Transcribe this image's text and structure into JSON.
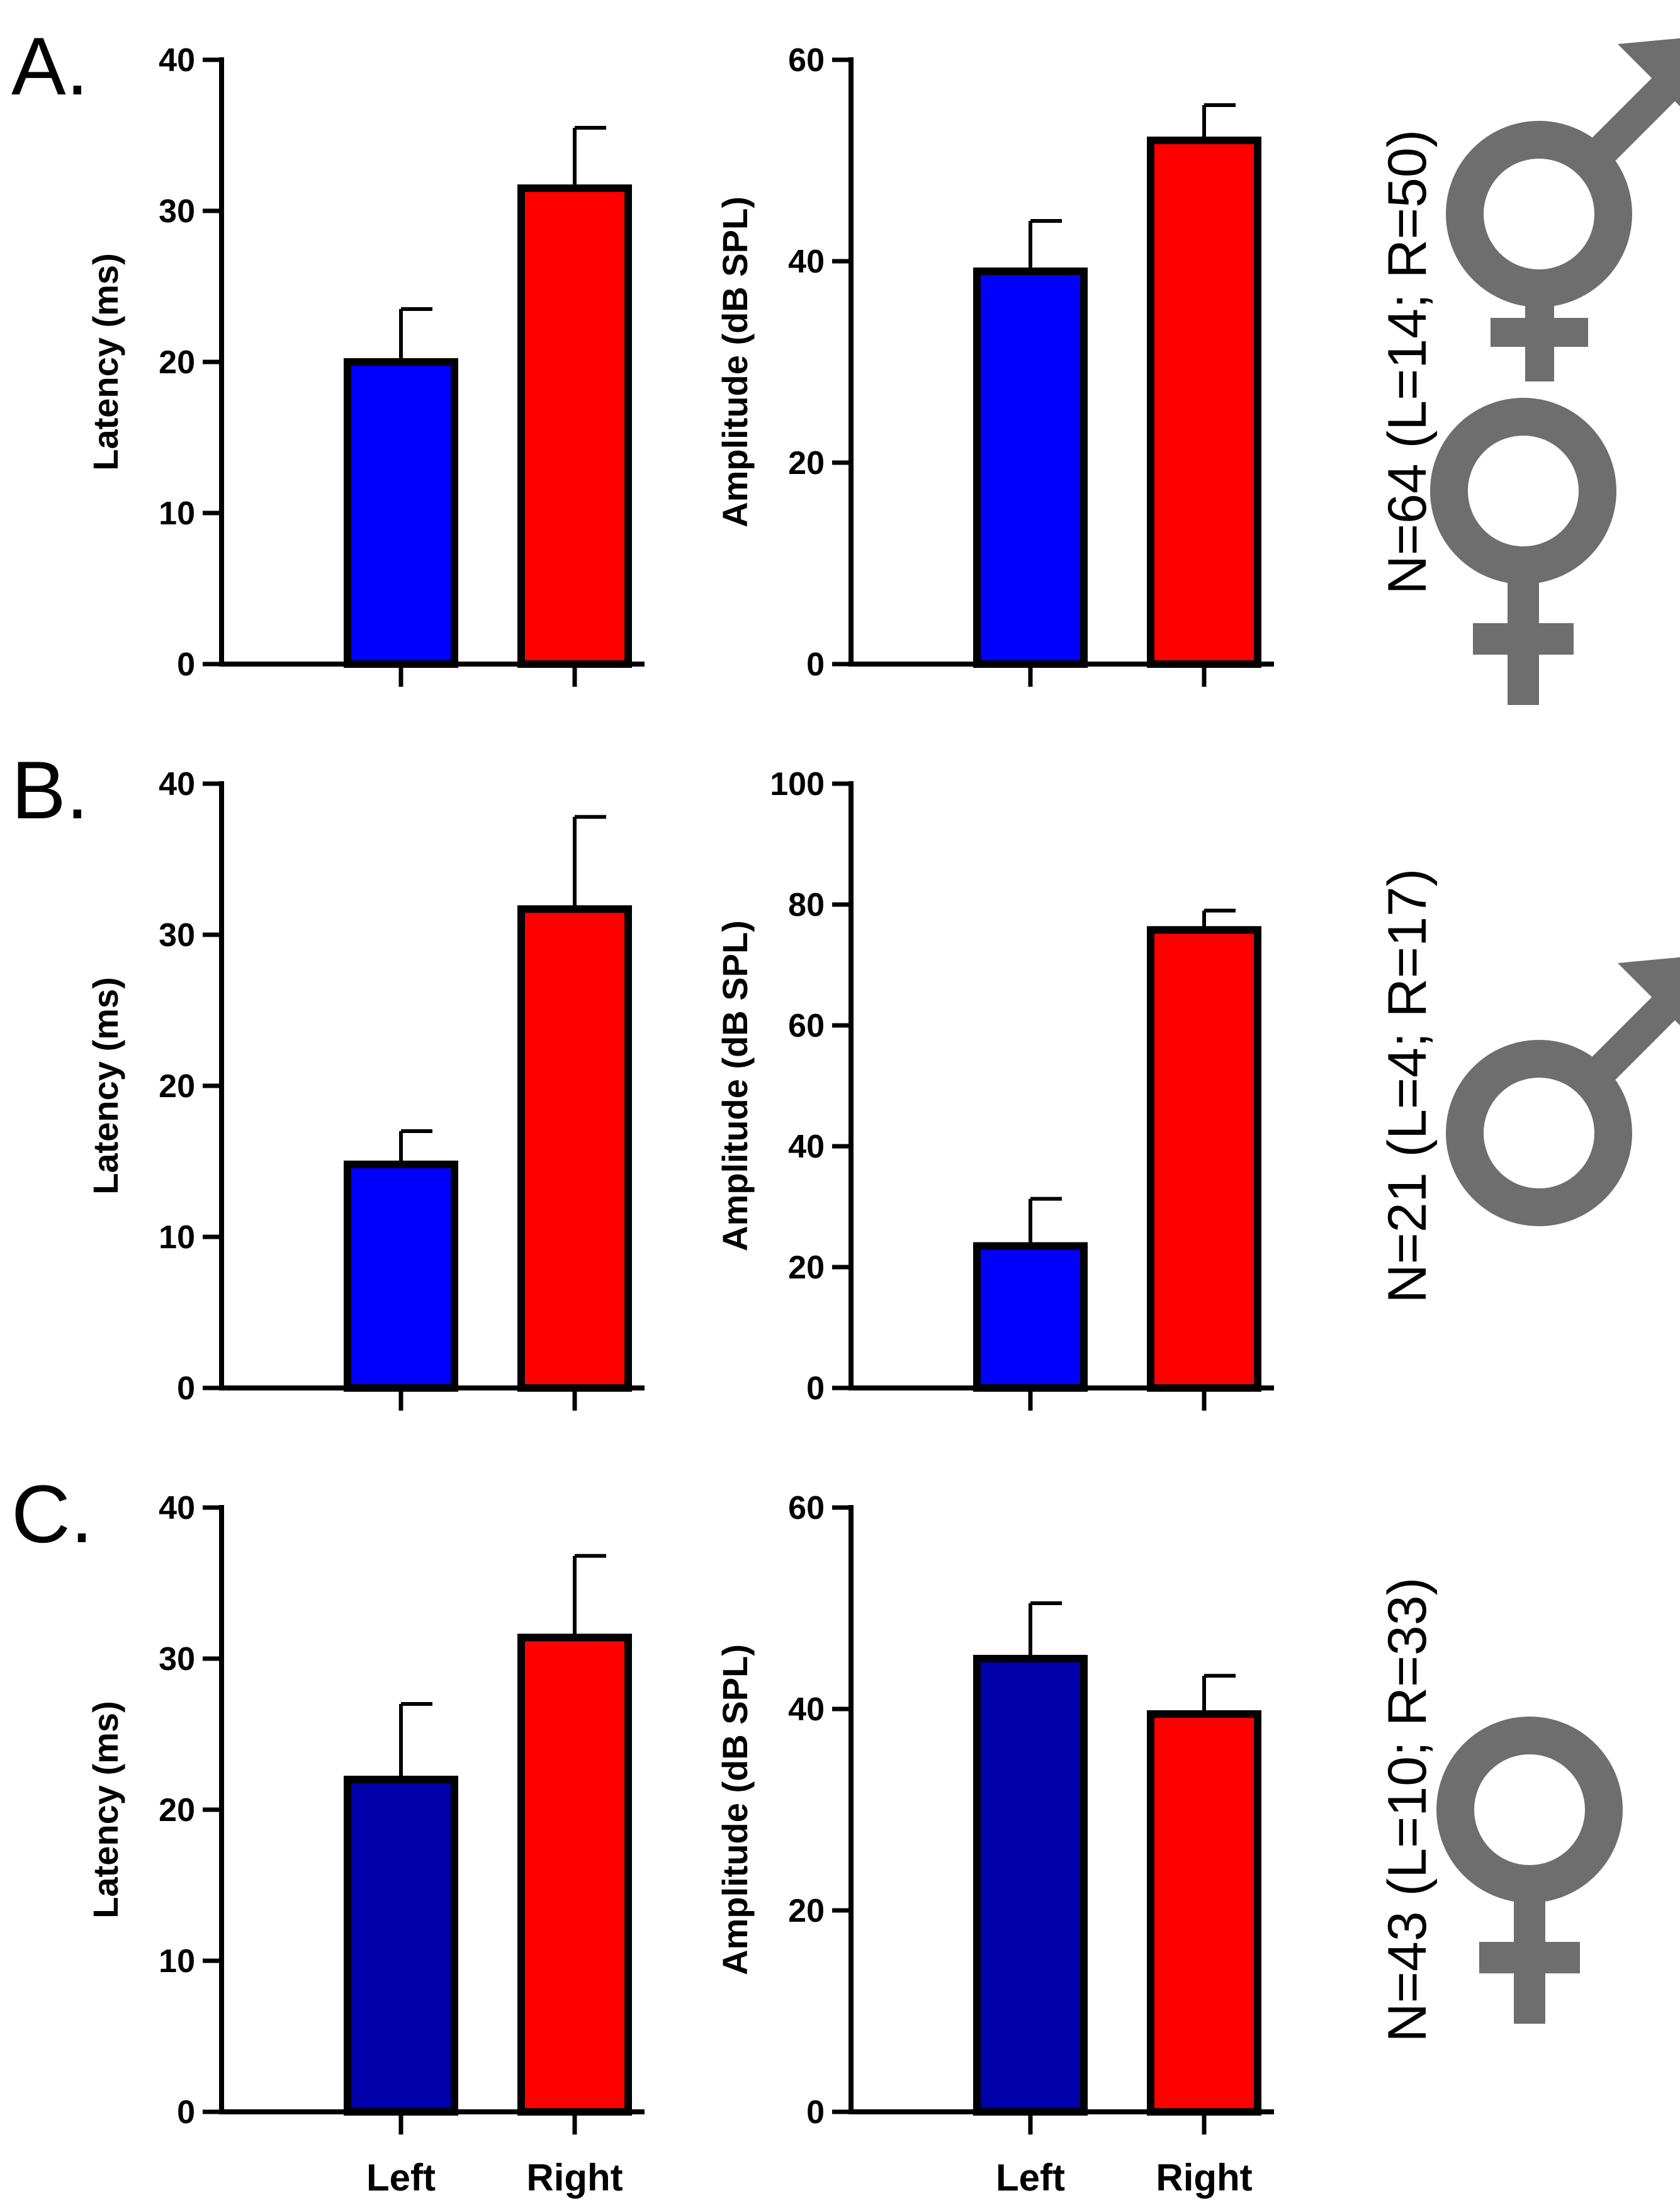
{
  "chart_data": [
    {
      "panel": "A.",
      "note": "N=64 (L=14; R=50)",
      "symbols": [
        "male-symbol",
        "female-symbol"
      ],
      "charts": [
        {
          "type": "bar",
          "categories": [
            "Left",
            "Right"
          ],
          "values": [
            20,
            31.5
          ],
          "errors": [
            3.5,
            4
          ],
          "colors": [
            "#0000ff",
            "#ff0000"
          ],
          "ylabel": "Latency (ms)",
          "ylim": [
            0,
            40
          ],
          "yticks": [
            0,
            10,
            20,
            30,
            40
          ],
          "show_category_labels": false
        },
        {
          "type": "bar",
          "categories": [
            "Left",
            "Right"
          ],
          "values": [
            39,
            52
          ],
          "errors": [
            5,
            3.5
          ],
          "colors": [
            "#0000ff",
            "#ff0000"
          ],
          "ylabel": "Amplitude (dB SPL)",
          "ylim": [
            0,
            60
          ],
          "yticks": [
            0,
            20,
            40,
            60
          ],
          "show_category_labels": false
        }
      ]
    },
    {
      "panel": "B.",
      "note": "N=21 (L=4; R=17)",
      "symbols": [
        "male-symbol"
      ],
      "charts": [
        {
          "type": "bar",
          "categories": [
            "Left",
            "Right"
          ],
          "values": [
            14.8,
            31.7
          ],
          "errors": [
            2.2,
            6.1
          ],
          "colors": [
            "#0000ff",
            "#ff0000"
          ],
          "ylabel": "Latency (ms)",
          "ylim": [
            0,
            40
          ],
          "yticks": [
            0,
            10,
            20,
            30,
            40
          ],
          "show_category_labels": false
        },
        {
          "type": "bar",
          "categories": [
            "Left",
            "Right"
          ],
          "values": [
            23.5,
            75.8
          ],
          "errors": [
            7.8,
            3.2
          ],
          "colors": [
            "#0000ff",
            "#ff0000"
          ],
          "ylabel": "Amplitude (dB SPL)",
          "ylim": [
            0,
            100
          ],
          "yticks": [
            0,
            20,
            40,
            60,
            80,
            100
          ],
          "show_category_labels": false
        }
      ]
    },
    {
      "panel": "C.",
      "note": "N=43 (L=10; R=33)",
      "symbols": [
        "female-symbol"
      ],
      "charts": [
        {
          "type": "bar",
          "categories": [
            "Left",
            "Right"
          ],
          "values": [
            22,
            31.4
          ],
          "errors": [
            5,
            5.4
          ],
          "colors": [
            "#0000aa",
            "#ff0000"
          ],
          "ylabel": "Latency (ms)",
          "ylim": [
            0,
            40
          ],
          "yticks": [
            0,
            10,
            20,
            30,
            40
          ],
          "show_category_labels": true
        },
        {
          "type": "bar",
          "categories": [
            "Left",
            "Right"
          ],
          "values": [
            45,
            39.5
          ],
          "errors": [
            5.5,
            3.8
          ],
          "colors": [
            "#0000aa",
            "#ff0000"
          ],
          "ylabel": "Amplitude (dB SPL)",
          "ylim": [
            0,
            60
          ],
          "yticks": [
            0,
            20,
            40,
            60
          ],
          "show_category_labels": true
        }
      ]
    }
  ],
  "symbol_color": "#6e6e6e"
}
